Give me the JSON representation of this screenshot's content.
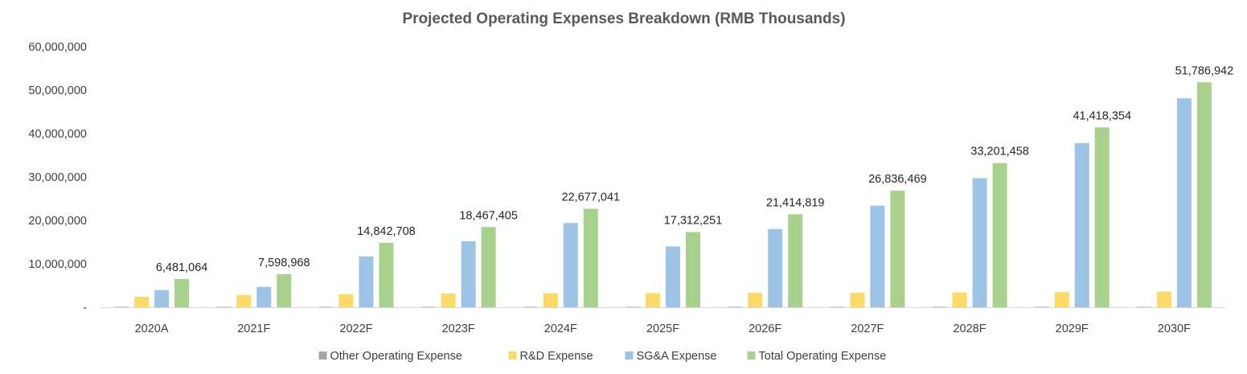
{
  "chart_data": {
    "type": "bar",
    "title": "Projected Operating Expenses Breakdown (RMB Thousands)",
    "xlabel": "",
    "ylabel": "",
    "ylim": [
      0,
      60000000
    ],
    "yticks": [
      0,
      10000000,
      20000000,
      30000000,
      40000000,
      50000000,
      60000000
    ],
    "ytick_labels": [
      "-",
      "10,000,000",
      "20,000,000",
      "30,000,000",
      "40,000,000",
      "50,000,000",
      "60,000,000"
    ],
    "grid": false,
    "legend_position": "bottom",
    "categories": [
      "2020A",
      "2021F",
      "2022F",
      "2023F",
      "2024F",
      "2025F",
      "2026F",
      "2027F",
      "2028F",
      "2029F",
      "2030F"
    ],
    "series": [
      {
        "name": "Other Operating Expense",
        "color": "#a5a5a5",
        "values": [
          100000,
          100000,
          100000,
          100000,
          100000,
          100000,
          100000,
          100000,
          100000,
          100000,
          100000
        ]
      },
      {
        "name": "R&D Expense",
        "color": "#ffd966",
        "values": [
          2400000,
          2800000,
          3000000,
          3150000,
          3200000,
          3250000,
          3300000,
          3350000,
          3400000,
          3500000,
          3600000
        ]
      },
      {
        "name": "SG&A Expense",
        "color": "#9dc3e6",
        "values": [
          3950000,
          4700000,
          11700000,
          15200000,
          19400000,
          14000000,
          18000000,
          23400000,
          29700000,
          37800000,
          48100000
        ]
      },
      {
        "name": "Total Operating Expense",
        "color": "#a9d18e",
        "values": [
          6481064,
          7598968,
          14842708,
          18467405,
          22677041,
          17312251,
          21414819,
          26836469,
          33201458,
          41418354,
          51786942
        ],
        "data_labels": [
          "6,481,064",
          "7,598,968",
          "14,842,708",
          "18,467,405",
          "22,677,041",
          "17,312,251",
          "21,414,819",
          "26,836,469",
          "33,201,458",
          "41,418,354",
          "51,786,942"
        ]
      }
    ]
  }
}
